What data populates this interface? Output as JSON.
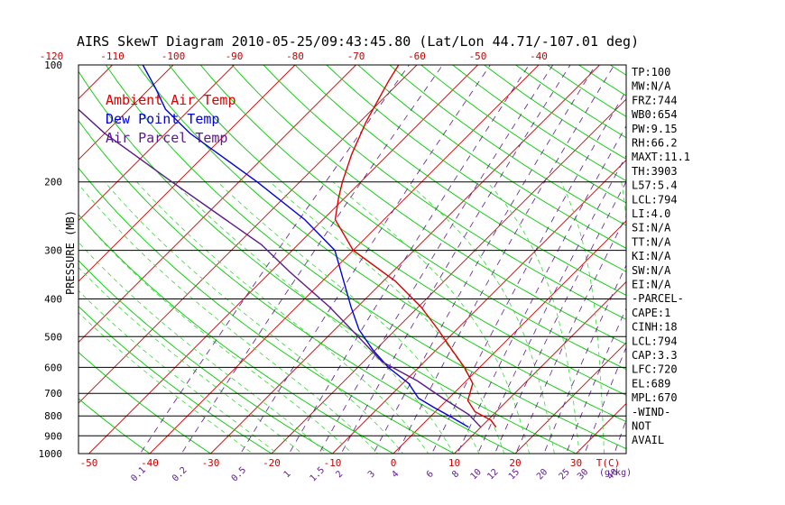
{
  "chart_data": {
    "type": "line",
    "title": "AIRS SkewT Diagram 2010-05-25/09:43:45.80 (Lat/Lon 44.71/-107.01 deg)",
    "xlabel": "T(C)",
    "ylabel": "PRESSURE (MB)",
    "mixing_ratio_label": "(g/kg)",
    "pressure_levels": [
      100,
      200,
      300,
      400,
      500,
      600,
      700,
      800,
      900,
      1000
    ],
    "bottom_temperature_ticks": [
      -50,
      -40,
      -30,
      -20,
      -10,
      0,
      10,
      20,
      30
    ],
    "top_temperature_ticks": [
      -120,
      -110,
      -100,
      -90,
      -80,
      -70,
      -60,
      -50,
      -40
    ],
    "mixing_ratio_ticks": [
      "0.1",
      "0.2",
      "0.5",
      "1",
      "1.5",
      "2",
      "3",
      "4",
      "6",
      "8",
      "10",
      "12",
      "15",
      "20",
      "25",
      "30",
      "40"
    ],
    "legend": [
      {
        "name": "Ambient Air Temp",
        "color": "#dd0000"
      },
      {
        "name": "Dew Point Temp",
        "color": "#0000dd"
      },
      {
        "name": "Air Parcel Temp",
        "color": "#5a1a8a"
      }
    ],
    "series": [
      {
        "name": "Ambient Air Temp",
        "color": "#dd0000",
        "points": [
          [
            855,
            12.5
          ],
          [
            820,
            10.5
          ],
          [
            780,
            6.5
          ],
          [
            730,
            3.5
          ],
          [
            660,
            1.5
          ],
          [
            600,
            -2.5
          ],
          [
            540,
            -7.5
          ],
          [
            480,
            -13
          ],
          [
            420,
            -19.5
          ],
          [
            360,
            -28
          ],
          [
            300,
            -40
          ],
          [
            250,
            -48
          ],
          [
            220,
            -51
          ],
          [
            200,
            -53
          ],
          [
            170,
            -56
          ],
          [
            140,
            -59
          ],
          [
            110,
            -62
          ],
          [
            100,
            -63
          ]
        ]
      },
      {
        "name": "Dew Point Temp",
        "color": "#0000dd",
        "points": [
          [
            855,
            8
          ],
          [
            800,
            3
          ],
          [
            760,
            -1
          ],
          [
            720,
            -5
          ],
          [
            660,
            -9
          ],
          [
            600,
            -15
          ],
          [
            540,
            -20.5
          ],
          [
            480,
            -26
          ],
          [
            420,
            -31
          ],
          [
            360,
            -36.5
          ],
          [
            300,
            -43
          ],
          [
            250,
            -53
          ],
          [
            200,
            -67
          ],
          [
            150,
            -86
          ],
          [
            130,
            -94
          ],
          [
            115,
            -99
          ],
          [
            100,
            -105
          ]
        ]
      },
      {
        "name": "Air Parcel Temp",
        "color": "#5a1a8a",
        "points": [
          [
            855,
            10
          ],
          [
            794,
            6
          ],
          [
            720,
            -1
          ],
          [
            650,
            -8
          ],
          [
            580,
            -17
          ],
          [
            500,
            -25
          ],
          [
            420,
            -34.5
          ],
          [
            340,
            -47
          ],
          [
            290,
            -56
          ],
          [
            250,
            -66
          ],
          [
            200,
            -81
          ],
          [
            150,
            -100
          ],
          [
            120,
            -113
          ],
          [
            100,
            -123
          ]
        ]
      }
    ],
    "stats_panel": [
      "TP:100",
      "MW:N/A",
      "FRZ:744",
      "WB0:654",
      "PW:9.15",
      "RH:66.2",
      "MAXT:11.1",
      "TH:3903",
      "L57:5.4",
      "LCL:794",
      "LI:4.0",
      "SI:N/A",
      "TT:N/A",
      "KI:N/A",
      "SW:N/A",
      "EI:N/A",
      "-PARCEL-",
      "CAPE:1",
      "CINH:18",
      "LCL:794",
      "CAP:3.3",
      "LFC:720",
      "EL:689",
      "MPL:670",
      "-WIND-",
      "NOT",
      "AVAIL"
    ],
    "colors": {
      "isotherm": "#cc0000",
      "dry_adiabat": "#00cc00",
      "moist_adiabat": "#33dd33",
      "mixing_ratio": "#5a1a8a",
      "isobar": "#000000"
    }
  }
}
